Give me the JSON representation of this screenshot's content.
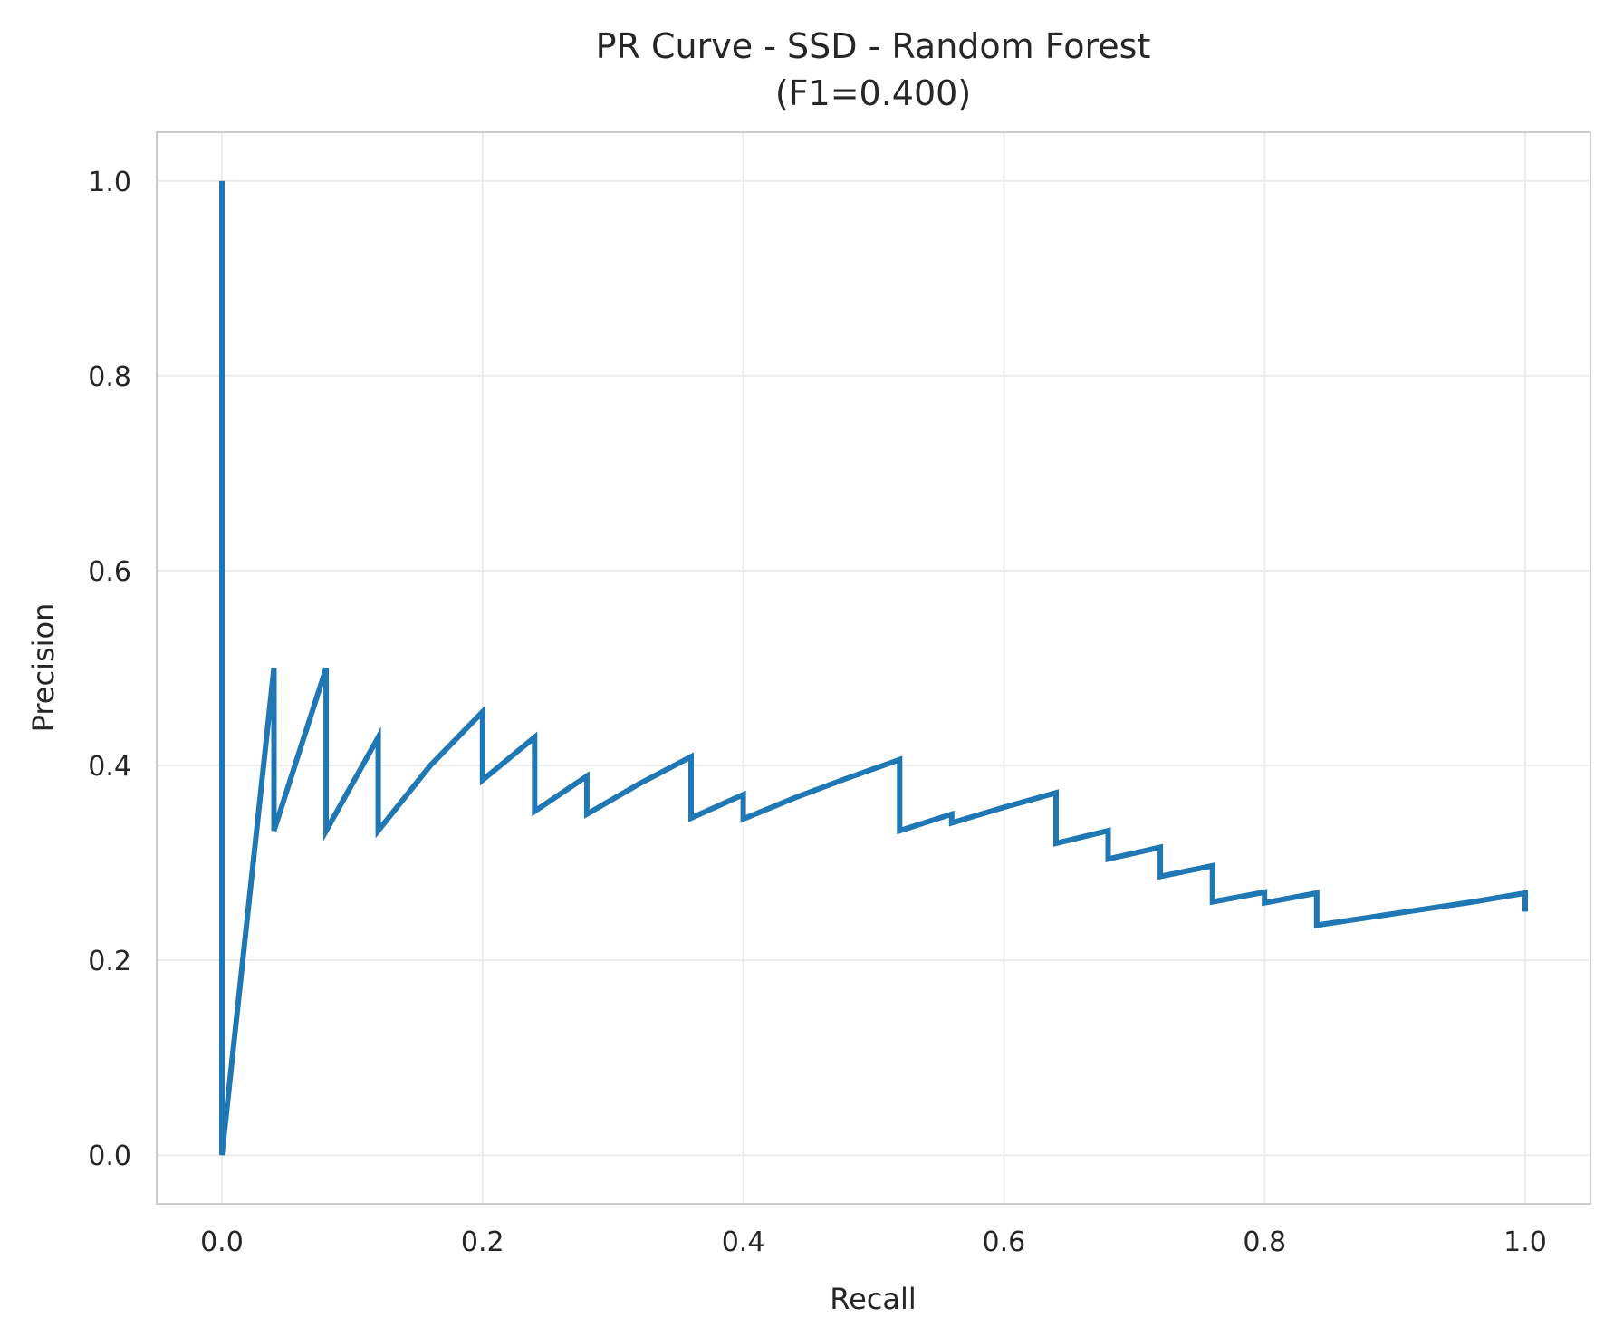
{
  "chart_data": {
    "type": "line",
    "title": "PR Curve - SSD - Random Forest",
    "subtitle": "(F1=0.400)",
    "xlabel": "Recall",
    "ylabel": "Precision",
    "xlim": [
      -0.05,
      1.05
    ],
    "ylim": [
      -0.05,
      1.05
    ],
    "xticks": [
      0.0,
      0.2,
      0.4,
      0.6,
      0.8,
      1.0
    ],
    "yticks": [
      0.0,
      0.2,
      0.4,
      0.6,
      0.8,
      1.0
    ],
    "xtick_labels": [
      "0.0",
      "0.2",
      "0.4",
      "0.6",
      "0.8",
      "1.0"
    ],
    "ytick_labels": [
      "0.0",
      "0.2",
      "0.4",
      "0.6",
      "0.8",
      "1.0"
    ],
    "grid": true,
    "series": [
      {
        "color": "#1f77b4",
        "x": [
          0.0,
          0.0,
          0.0,
          0.04,
          0.04,
          0.08,
          0.08,
          0.12,
          0.12,
          0.16,
          0.2,
          0.2,
          0.24,
          0.24,
          0.28,
          0.28,
          0.32,
          0.36,
          0.36,
          0.4,
          0.4,
          0.44,
          0.48,
          0.52,
          0.52,
          0.56,
          0.56,
          0.6,
          0.64,
          0.64,
          0.68,
          0.68,
          0.72,
          0.72,
          0.76,
          0.76,
          0.8,
          0.8,
          0.84,
          0.84,
          0.88,
          0.92,
          0.96,
          1.0,
          1.0
        ],
        "y": [
          1.0,
          0.0,
          0.0,
          0.5,
          0.333,
          0.5,
          0.333,
          0.429,
          0.333,
          0.4,
          0.455,
          0.385,
          0.429,
          0.353,
          0.389,
          0.35,
          0.381,
          0.409,
          0.346,
          0.37,
          0.345,
          0.367,
          0.387,
          0.406,
          0.333,
          0.35,
          0.341,
          0.357,
          0.372,
          0.32,
          0.333,
          0.304,
          0.316,
          0.286,
          0.297,
          0.26,
          0.27,
          0.259,
          0.269,
          0.236,
          0.244,
          0.252,
          0.26,
          0.269,
          0.25
        ]
      }
    ]
  }
}
